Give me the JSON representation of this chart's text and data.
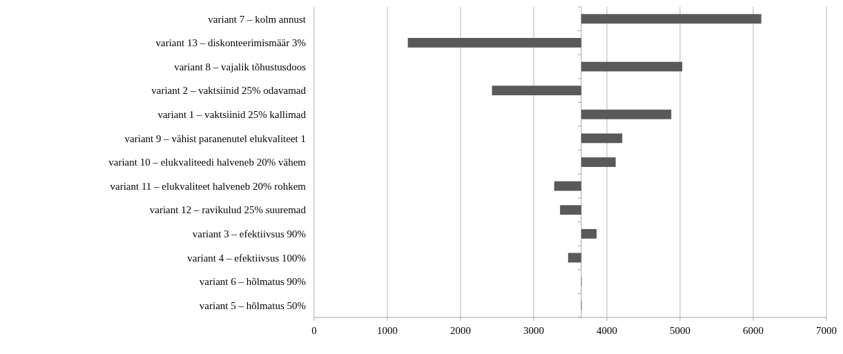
{
  "chart_data": {
    "type": "bar",
    "orientation": "horizontal",
    "categories": [
      "variant 7 – kolm annust",
      "variant 13 – diskonteerimismäär 3%",
      "variant 8 – vajalik tõhustusdoos",
      "variant 2 – vaktsiinid 25% odavamad",
      "variant 1 – vaktsiinid 25% kallimad",
      "variant 9 – vähist paranenutel elukvaliteet 1",
      "variant 10 – elukvaliteedi halveneb 20% vähem",
      "variant 11 – elukvaliteet halveneb 20% rohkem",
      "variant 12 – ravikulud 25% suuremad",
      "variant 3 – efektiivsus 90%",
      "variant 4 – efektiivsus 100%",
      "variant 6 – hõlmatus 90%",
      "variant 5 – hõlmatus 50%"
    ],
    "base": [
      3650,
      3650,
      3650,
      3650,
      3650,
      3650,
      3650,
      3650,
      3650,
      3650,
      3650,
      3650,
      3650
    ],
    "values": [
      2460,
      -2370,
      1380,
      -1220,
      1230,
      560,
      470,
      -370,
      -290,
      210,
      -180,
      0,
      0
    ],
    "color": "#595959",
    "xlim": [
      0,
      7000
    ],
    "xticks": [
      0,
      1000,
      2000,
      3000,
      4000,
      5000,
      6000,
      7000
    ],
    "grid": "x",
    "ref_lines": [
      {
        "axis": "x",
        "value": 3650,
        "color": "#a6a6a6"
      }
    ]
  }
}
